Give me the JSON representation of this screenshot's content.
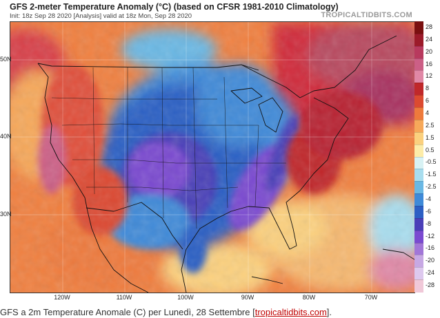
{
  "header": {
    "title": "GFS 2-meter Temperature Anomaly (°C) (based on CFSR 1981-2010 Climatology)",
    "subtitle": "Init: 18z Sep 28 2020   [Analysis]   valid at 18z Mon, Sep 28 2020",
    "brand": "TROPICALTIDBITS.COM"
  },
  "axes": {
    "longitude_labels": [
      "120W",
      "110W",
      "100W",
      "90W",
      "80W",
      "70W"
    ],
    "latitude_labels": [
      "50N",
      "40N",
      "30N"
    ]
  },
  "colorbar": {
    "labels": [
      "28",
      "24",
      "20",
      "16",
      "12",
      "8",
      "6",
      "4",
      "2.5",
      "1.5",
      "0.5",
      "-0.5",
      "-1.5",
      "-2.5",
      "-4",
      "-6",
      "-8",
      "-12",
      "-16",
      "-20",
      "-24",
      "-28"
    ],
    "colors": [
      "#7a1010",
      "#9c1b2a",
      "#b83a5e",
      "#cc5f86",
      "#e088a6",
      "#c0282a",
      "#dc4a30",
      "#ee7a3c",
      "#f6a85a",
      "#fbd07e",
      "#fdeca8",
      "#d8f2f4",
      "#a8ddee",
      "#6ab8e4",
      "#3f8ad8",
      "#2c5fc4",
      "#4a3fb8",
      "#7a4ad0",
      "#a276d8",
      "#c7a8e4",
      "#ddc8ee",
      "#f0c8d8"
    ]
  },
  "caption": {
    "prefix": "GFS a 2m Temperature Anomale (C) per Lunedì, 28 Settembre [",
    "link": "tropicaltidbits.com",
    "suffix": "]."
  }
}
